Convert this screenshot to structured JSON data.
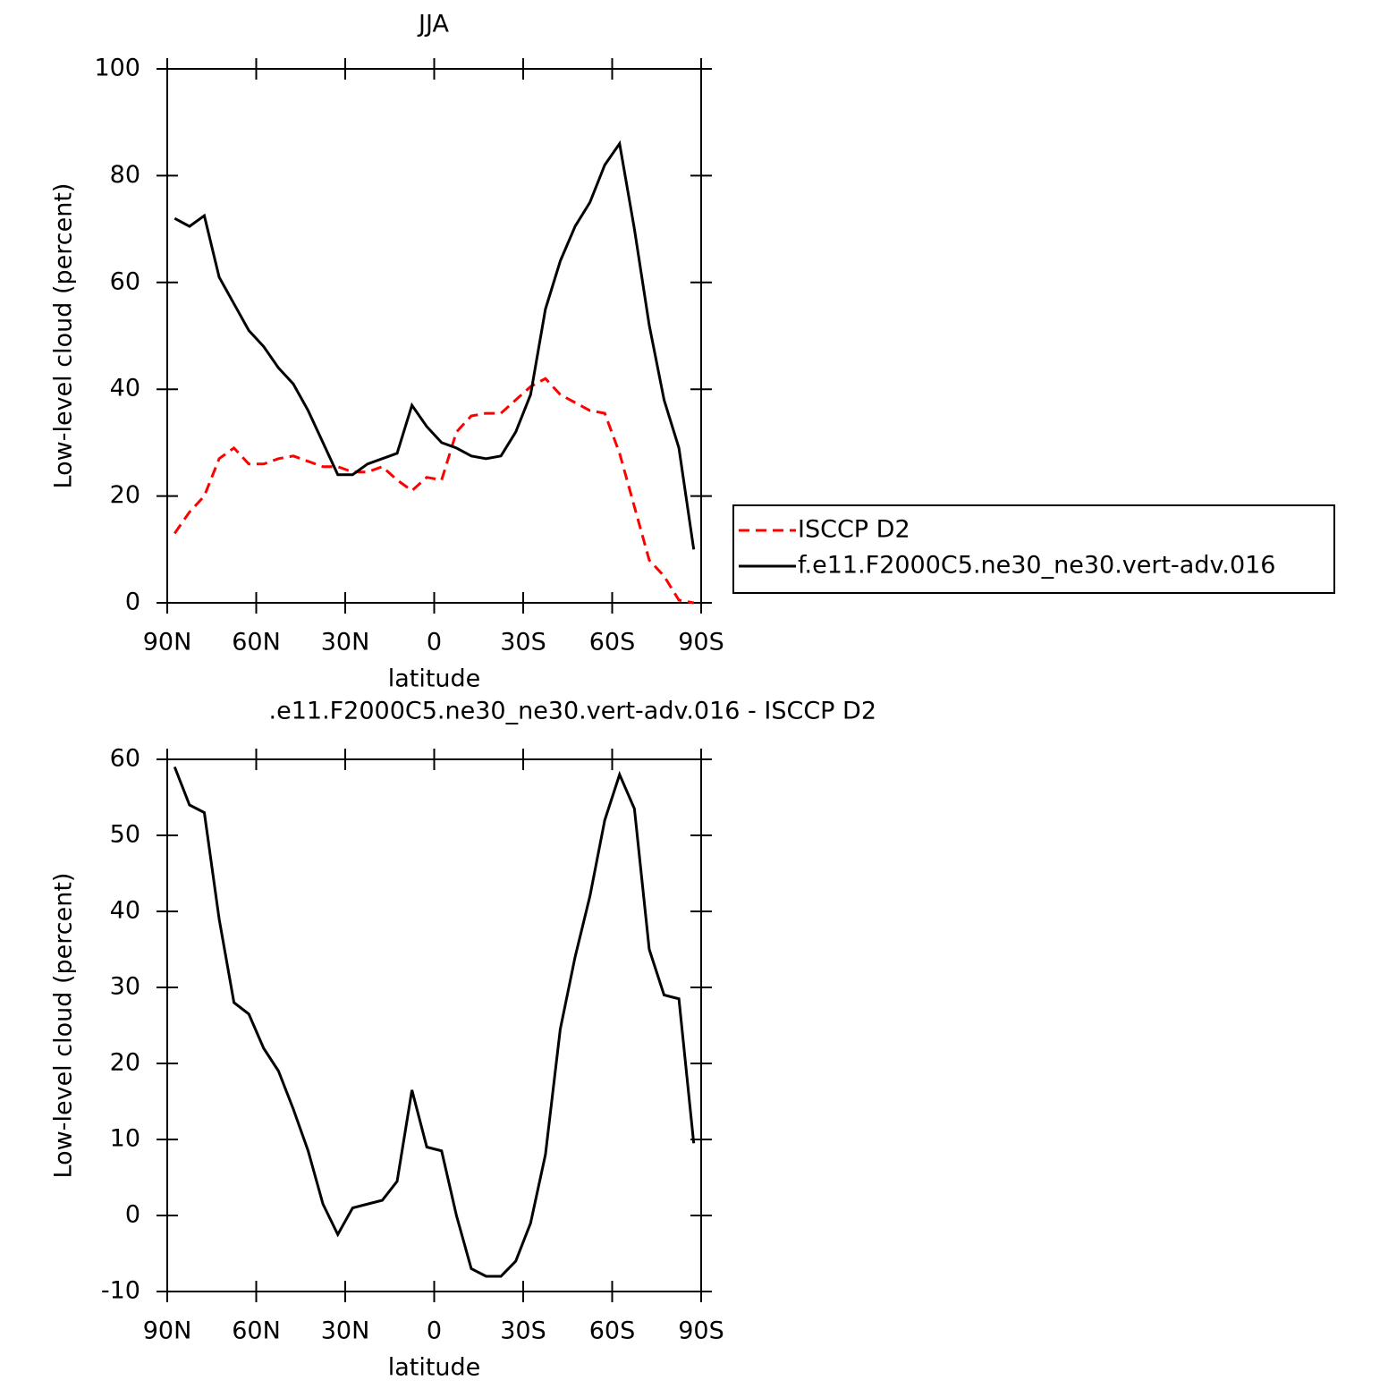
{
  "chart_data": [
    {
      "type": "line",
      "title": "JJA",
      "xlabel": "latitude",
      "ylabel": "Low-level cloud (percent)",
      "xlim": [
        90,
        -90
      ],
      "xticks": [
        {
          "value": 90,
          "label": "90N"
        },
        {
          "value": 60,
          "label": "60N"
        },
        {
          "value": 30,
          "label": "30N"
        },
        0,
        {
          "value": -30,
          "label": "30S"
        },
        {
          "value": -60,
          "label": "60S"
        },
        {
          "value": -90,
          "label": "90S"
        }
      ],
      "ylim": [
        0,
        100
      ],
      "yticks": [
        0,
        20,
        40,
        60,
        80,
        100
      ],
      "legend": "right",
      "x": [
        87.5,
        82.5,
        77.5,
        72.5,
        67.5,
        62.5,
        57.5,
        52.5,
        47.5,
        42.5,
        37.5,
        32.5,
        27.5,
        22.5,
        17.5,
        12.5,
        7.5,
        2.5,
        -2.5,
        -7.5,
        -12.5,
        -17.5,
        -22.5,
        -27.5,
        -32.5,
        -37.5,
        -42.5,
        -47.5,
        -52.5,
        -57.5,
        -62.5,
        -67.5,
        -72.5,
        -77.5,
        -82.5,
        -87.5
      ],
      "series": [
        {
          "name": "ISCCP D2",
          "color": "#ff0000",
          "dash": true,
          "values": [
            13,
            17,
            20,
            27,
            29,
            26,
            26,
            27,
            27.5,
            26.5,
            25.5,
            25.5,
            24.5,
            24.5,
            25.5,
            23,
            21,
            23.5,
            23,
            32,
            35,
            35.5,
            35.5,
            38,
            40.5,
            42,
            39,
            37.5,
            36,
            35.5,
            28,
            18,
            8,
            5,
            0.5,
            0
          ]
        },
        {
          "name": "f.e11.F2000C5.ne30_ne30.vert-adv.016",
          "color": "#000000",
          "dash": false,
          "values": [
            72,
            70.5,
            72.5,
            61,
            56,
            51,
            48,
            44,
            41,
            36,
            30,
            24,
            24,
            26,
            27,
            28,
            37,
            33,
            30,
            29,
            27.5,
            27,
            27.5,
            32,
            39,
            55,
            64,
            70.5,
            75,
            82,
            86,
            70,
            52,
            38,
            29,
            10
          ]
        }
      ]
    },
    {
      "type": "line",
      "title": ".e11.F2000C5.ne30_ne30.vert-adv.016 - ISCCP D2",
      "xlabel": "latitude",
      "ylabel": "Low-level cloud (percent)",
      "xlim": [
        90,
        -90
      ],
      "xticks": [
        {
          "value": 90,
          "label": "90N"
        },
        {
          "value": 60,
          "label": "60N"
        },
        {
          "value": 30,
          "label": "30N"
        },
        0,
        {
          "value": -30,
          "label": "30S"
        },
        {
          "value": -60,
          "label": "60S"
        },
        {
          "value": -90,
          "label": "90S"
        }
      ],
      "ylim": [
        -10,
        60
      ],
      "yticks": [
        -10,
        0,
        10,
        20,
        30,
        40,
        50,
        60
      ],
      "x": [
        87.5,
        82.5,
        77.5,
        72.5,
        67.5,
        62.5,
        57.5,
        52.5,
        47.5,
        42.5,
        37.5,
        32.5,
        27.5,
        22.5,
        17.5,
        12.5,
        7.5,
        2.5,
        -2.5,
        -7.5,
        -12.5,
        -17.5,
        -22.5,
        -27.5,
        -32.5,
        -37.5,
        -42.5,
        -47.5,
        -52.5,
        -57.5,
        -62.5,
        -67.5,
        -72.5,
        -77.5,
        -82.5,
        -87.5
      ],
      "series": [
        {
          "color": "#000000",
          "dash": false,
          "values": [
            59,
            54,
            53,
            39,
            28,
            26.5,
            22,
            19,
            14,
            8.5,
            1.5,
            -2.5,
            1,
            1.5,
            2,
            4.5,
            16.5,
            9,
            8.5,
            0,
            -7,
            -8,
            -8,
            -6,
            -1,
            8,
            24.5,
            34,
            42,
            52,
            58,
            53.5,
            35,
            29,
            28.5,
            9.5
          ]
        }
      ]
    }
  ]
}
